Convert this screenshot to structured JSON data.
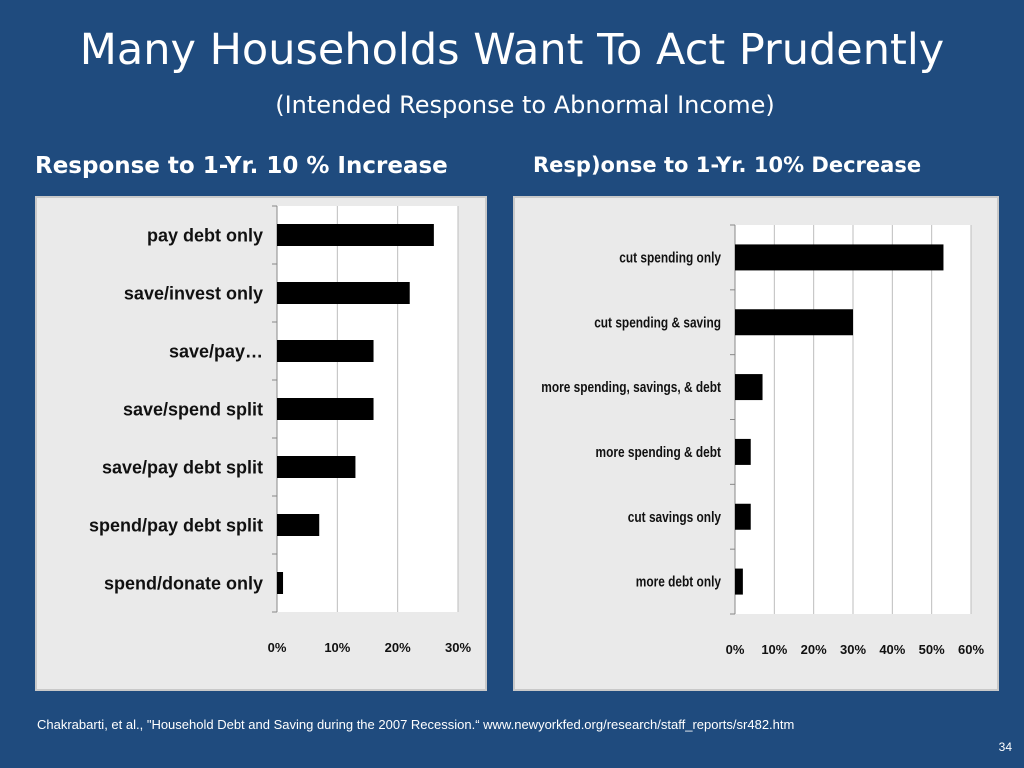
{
  "slide": {
    "title": "Many Households Want To Act Prudently",
    "subtitle": "(Intended Response to Abnormal Income)",
    "citation": "Chakrabarti, et al., \"Household Debt and Saving during the 2007 Recession.“  www.newyorkfed.org/research/staff_reports/sr482.htm",
    "page_number": "34"
  },
  "colors": {
    "background": "#1f4b7e",
    "panel": "#eaeaea",
    "bar": "#000000",
    "text": "#ffffff"
  },
  "chart_data": [
    {
      "type": "bar",
      "orientation": "horizontal",
      "heading": "Response to 1-Yr. 10 % Increase",
      "categories": [
        "pay debt only",
        "save/invest only",
        "save/pay…",
        "save/spend split",
        "save/pay debt split",
        "spend/pay debt split",
        "spend/donate only"
      ],
      "values": [
        26,
        22,
        16,
        16,
        13,
        7,
        1
      ],
      "unit": "%",
      "xlim": [
        0,
        30
      ],
      "xticks": [
        "0%",
        "10%",
        "20%",
        "30%"
      ],
      "grid": true
    },
    {
      "type": "bar",
      "orientation": "horizontal",
      "heading": "Resp)onse to 1-Yr. 10% Decrease",
      "categories": [
        "cut spending only",
        "cut spending & saving",
        "more spending, savings, & debt",
        "more spending & debt",
        "cut savings only",
        "more debt only"
      ],
      "values": [
        53,
        30,
        7,
        4,
        4,
        2
      ],
      "unit": "%",
      "xlim": [
        0,
        60
      ],
      "xticks": [
        "0%",
        "10%",
        "20%",
        "30%",
        "40%",
        "50%",
        "60%"
      ],
      "grid": true
    }
  ]
}
